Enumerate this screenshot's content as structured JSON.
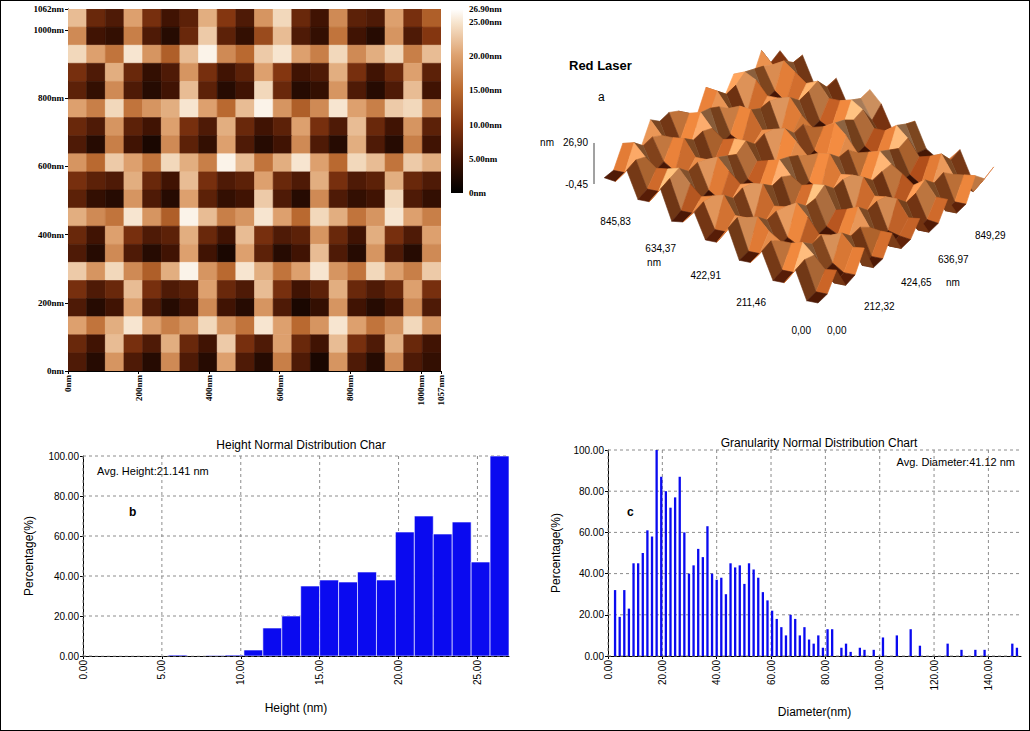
{
  "chart_data": [
    {
      "type": "heatmap",
      "xlim": [
        0,
        1057
      ],
      "ylim": [
        0,
        1062
      ],
      "xticks": [
        {
          "value": 0,
          "label": "0nm"
        },
        {
          "value": 200,
          "label": "200nm"
        },
        {
          "value": 400,
          "label": "400nm"
        },
        {
          "value": 600,
          "label": "600nm"
        },
        {
          "value": 800,
          "label": "800nm"
        },
        {
          "value": 1000,
          "label": "1000nm"
        },
        {
          "value": 1057,
          "label": "1057nm"
        }
      ],
      "yticks": [
        {
          "value": 0,
          "label": "0nm"
        },
        {
          "value": 200,
          "label": "200nm"
        },
        {
          "value": 400,
          "label": "400nm"
        },
        {
          "value": 600,
          "label": "600nm"
        },
        {
          "value": 800,
          "label": "800nm"
        },
        {
          "value": 1000,
          "label": "1000nm"
        },
        {
          "value": 1062,
          "label": "1062nm"
        }
      ],
      "color_range": [
        0,
        26.9
      ],
      "color_ticks": [
        {
          "value": 0,
          "label": "0nm"
        },
        {
          "value": 5,
          "label": "5.00nm"
        },
        {
          "value": 10,
          "label": "10.00nm"
        },
        {
          "value": 15,
          "label": "15.00nm"
        },
        {
          "value": 20,
          "label": "20.00nm"
        },
        {
          "value": 25,
          "label": "25.00nm"
        },
        {
          "value": 26.9,
          "label": "26.90nm"
        }
      ],
      "cells": [
        [
          22,
          8,
          6,
          20,
          9,
          5,
          7,
          21,
          10,
          6,
          19,
          24,
          8,
          5,
          18,
          7,
          6,
          20,
          9,
          14
        ],
        [
          18,
          5,
          4,
          17,
          6,
          3,
          8,
          23,
          7,
          4,
          12,
          22,
          6,
          4,
          16,
          5,
          3,
          19,
          6,
          10
        ],
        [
          24,
          20,
          16,
          25,
          19,
          14,
          22,
          26,
          18,
          15,
          23,
          25,
          20,
          17,
          24,
          18,
          21,
          24,
          17,
          22
        ],
        [
          9,
          6,
          21,
          8,
          4,
          6,
          19,
          9,
          5,
          7,
          20,
          10,
          5,
          6,
          21,
          9,
          5,
          8,
          20,
          7
        ],
        [
          7,
          4,
          18,
          6,
          3,
          5,
          22,
          7,
          3,
          5,
          24,
          8,
          3,
          4,
          19,
          6,
          3,
          6,
          22,
          5
        ],
        [
          20,
          17,
          24,
          16,
          19,
          21,
          25,
          20,
          15,
          22,
          26,
          19,
          14,
          18,
          25,
          20,
          17,
          23,
          24,
          18
        ],
        [
          8,
          6,
          19,
          7,
          5,
          20,
          9,
          6,
          21,
          8,
          5,
          7,
          20,
          9,
          6,
          22,
          8,
          5,
          19,
          7
        ],
        [
          6,
          3,
          17,
          5,
          2,
          18,
          7,
          4,
          20,
          6,
          3,
          5,
          18,
          6,
          3,
          21,
          6,
          3,
          17,
          5
        ],
        [
          19,
          15,
          23,
          20,
          16,
          24,
          21,
          17,
          26,
          22,
          16,
          21,
          25,
          20,
          15,
          24,
          22,
          16,
          23,
          21
        ],
        [
          9,
          7,
          6,
          21,
          8,
          5,
          22,
          9,
          6,
          7,
          20,
          8,
          6,
          21,
          9,
          6,
          7,
          21,
          8,
          6
        ],
        [
          7,
          4,
          3,
          19,
          6,
          3,
          20,
          7,
          4,
          5,
          23,
          6,
          3,
          18,
          6,
          4,
          5,
          24,
          6,
          4
        ],
        [
          21,
          18,
          16,
          25,
          19,
          14,
          26,
          22,
          17,
          19,
          25,
          20,
          15,
          24,
          21,
          16,
          19,
          25,
          20,
          17
        ],
        [
          8,
          5,
          20,
          9,
          6,
          7,
          21,
          8,
          5,
          22,
          9,
          6,
          7,
          19,
          8,
          5,
          21,
          9,
          6,
          20
        ],
        [
          6,
          3,
          18,
          6,
          3,
          5,
          20,
          5,
          2,
          20,
          7,
          3,
          5,
          22,
          6,
          3,
          19,
          6,
          3,
          18
        ],
        [
          23,
          19,
          24,
          18,
          14,
          21,
          26,
          19,
          15,
          25,
          21,
          16,
          20,
          25,
          19,
          16,
          24,
          20,
          17,
          23
        ],
        [
          9,
          6,
          8,
          22,
          9,
          6,
          7,
          20,
          8,
          6,
          22,
          9,
          5,
          7,
          21,
          8,
          6,
          8,
          20,
          9
        ],
        [
          6,
          3,
          5,
          20,
          6,
          3,
          5,
          18,
          5,
          3,
          19,
          6,
          2,
          4,
          19,
          5,
          3,
          5,
          18,
          6
        ],
        [
          20,
          16,
          21,
          25,
          20,
          17,
          19,
          24,
          19,
          16,
          25,
          20,
          15,
          19,
          25,
          20,
          16,
          19,
          24,
          19
        ],
        [
          8,
          5,
          22,
          9,
          6,
          21,
          8,
          5,
          23,
          9,
          6,
          20,
          8,
          5,
          22,
          9,
          6,
          21,
          8,
          5
        ],
        [
          6,
          3,
          19,
          6,
          3,
          18,
          6,
          3,
          20,
          6,
          3,
          17,
          6,
          2,
          19,
          6,
          3,
          18,
          6,
          4
        ]
      ]
    },
    {
      "type": "surface",
      "title": "Red Laser",
      "panel": "a",
      "xlim": [
        0,
        1057
      ],
      "ylim": [
        0,
        1062
      ],
      "zlim": [
        -0.45,
        26.9
      ],
      "xticks": [
        {
          "value": 0,
          "label": "0,00"
        },
        {
          "value": 211.46,
          "label": "211,46"
        },
        {
          "value": 422.91,
          "label": "422,91"
        },
        {
          "value": 634.37,
          "label": "634,37"
        },
        {
          "value": 845.83,
          "label": "845,83"
        }
      ],
      "yticks": [
        {
          "value": 0,
          "label": "0,00"
        },
        {
          "value": 212.32,
          "label": "212,32"
        },
        {
          "value": 424.65,
          "label": "424,65"
        },
        {
          "value": 636.97,
          "label": "636,97"
        },
        {
          "value": 849.29,
          "label": "849,29"
        }
      ],
      "zticks": [
        {
          "value": -0.45,
          "label": "-0,45"
        },
        {
          "value": 26.9,
          "label": "26,90"
        }
      ],
      "x_label": "nm",
      "y_label": "nm",
      "z_label": "nm"
    },
    {
      "type": "histogram",
      "title": "Height Normal Distribution Char",
      "annotation": "Avg. Height:21.141 nm",
      "panel": "b",
      "x_label": "Height (nm)",
      "y_label": "Percentage(%)",
      "color": "#0a0af0",
      "bins": [
        0.6,
        1.8,
        3.0,
        4.2,
        5.4,
        6.6,
        7.8,
        9.0,
        10.2,
        11.4,
        12.6,
        13.8,
        15.0,
        16.2,
        17.4,
        18.6,
        19.8,
        21.0,
        22.2,
        23.4,
        24.6,
        25.8,
        27.0
      ],
      "values": [
        0,
        0,
        0,
        0,
        0.5,
        0,
        0.3,
        0.5,
        3,
        14,
        20,
        35,
        38,
        37,
        42,
        38,
        62,
        70,
        61,
        67,
        47,
        100
      ],
      "xlim": [
        0,
        27
      ],
      "ylim": [
        0,
        100
      ],
      "xticks": [
        {
          "value": 0,
          "label": "0.00"
        },
        {
          "value": 5,
          "label": "5.00"
        },
        {
          "value": 10,
          "label": "10.00"
        },
        {
          "value": 15,
          "label": "15.00"
        },
        {
          "value": 20,
          "label": "20.00"
        },
        {
          "value": 25,
          "label": "25.00"
        }
      ],
      "yticks": [
        {
          "value": 0,
          "label": "0.00"
        },
        {
          "value": 20,
          "label": "20.00"
        },
        {
          "value": 40,
          "label": "40.00"
        },
        {
          "value": 60,
          "label": "60.00"
        },
        {
          "value": 80,
          "label": "80.00"
        },
        {
          "value": 100,
          "label": "100.00"
        }
      ],
      "grid": true
    },
    {
      "type": "bar",
      "title": "Granularity Normal Distribution Chart",
      "annotation": "Avg. Diameter:41.12 nm",
      "panel": "c",
      "x_label": "Diameter(nm)",
      "y_label": "Percentage(%)",
      "color": "#0a0af0",
      "x": [
        2.6,
        4.3,
        6,
        7.7,
        9.4,
        11.1,
        12.8,
        14.5,
        16.2,
        17.9,
        19.6,
        21.3,
        23,
        24.7,
        26.4,
        28.1,
        29.8,
        31.5,
        33.2,
        34.9,
        36.6,
        38.3,
        40,
        41.7,
        43.4,
        45.1,
        46.8,
        48.5,
        50.2,
        51.9,
        53.6,
        55.3,
        57,
        58.7,
        60.4,
        62.1,
        63.8,
        65.5,
        67.2,
        68.9,
        70.6,
        72.3,
        74,
        75.7,
        77.4,
        79.1,
        80.8,
        82.5,
        84.2,
        85.9,
        87.6,
        89.3,
        91,
        92.7,
        94.4,
        96.1,
        97.8,
        99.5,
        101.2,
        102.9,
        104.6,
        106.3,
        108,
        109.7,
        111.4,
        113.1,
        114.8,
        116.5,
        118.2,
        119.9,
        121.6,
        123.3,
        125,
        126.7,
        128.4,
        130.1,
        131.8,
        133.5,
        135.2,
        136.9,
        138.6,
        140.3,
        142,
        143.7,
        145.4,
        147.1,
        148.8,
        150.5
      ],
      "values": [
        32,
        19,
        32,
        23,
        45,
        45,
        50,
        61,
        58,
        100,
        87,
        80,
        72,
        77,
        87,
        60,
        40,
        44,
        52,
        48,
        63,
        40,
        37,
        38,
        30,
        45,
        43,
        44,
        35,
        45,
        42,
        38,
        31,
        27,
        22,
        18,
        14,
        10,
        20,
        18,
        10,
        14,
        8,
        6,
        10,
        4,
        13,
        13,
        0,
        4,
        6,
        2,
        0,
        4,
        3,
        0,
        3,
        0,
        9,
        0,
        0,
        10,
        0,
        0,
        13,
        0,
        5,
        0,
        0,
        0,
        0,
        0,
        6,
        0,
        0,
        3,
        0,
        0,
        3,
        0,
        3,
        0,
        0,
        0,
        0,
        0,
        6,
        4
      ],
      "xlim": [
        0,
        152
      ],
      "ylim": [
        0,
        100
      ],
      "xticks": [
        {
          "value": 0,
          "label": "0.00"
        },
        {
          "value": 20,
          "label": "20.00"
        },
        {
          "value": 40,
          "label": "40.00"
        },
        {
          "value": 60,
          "label": "60.00"
        },
        {
          "value": 80,
          "label": "80.00"
        },
        {
          "value": 100,
          "label": "100.00"
        },
        {
          "value": 120,
          "label": "120.00"
        },
        {
          "value": 140,
          "label": "140.00"
        }
      ],
      "yticks": [
        {
          "value": 0,
          "label": "0.00"
        },
        {
          "value": 20,
          "label": "20.00"
        },
        {
          "value": 40,
          "label": "40.00"
        },
        {
          "value": 60,
          "label": "60.00"
        },
        {
          "value": 80,
          "label": "80.00"
        },
        {
          "value": 100,
          "label": "100.00"
        }
      ],
      "grid": true
    }
  ]
}
